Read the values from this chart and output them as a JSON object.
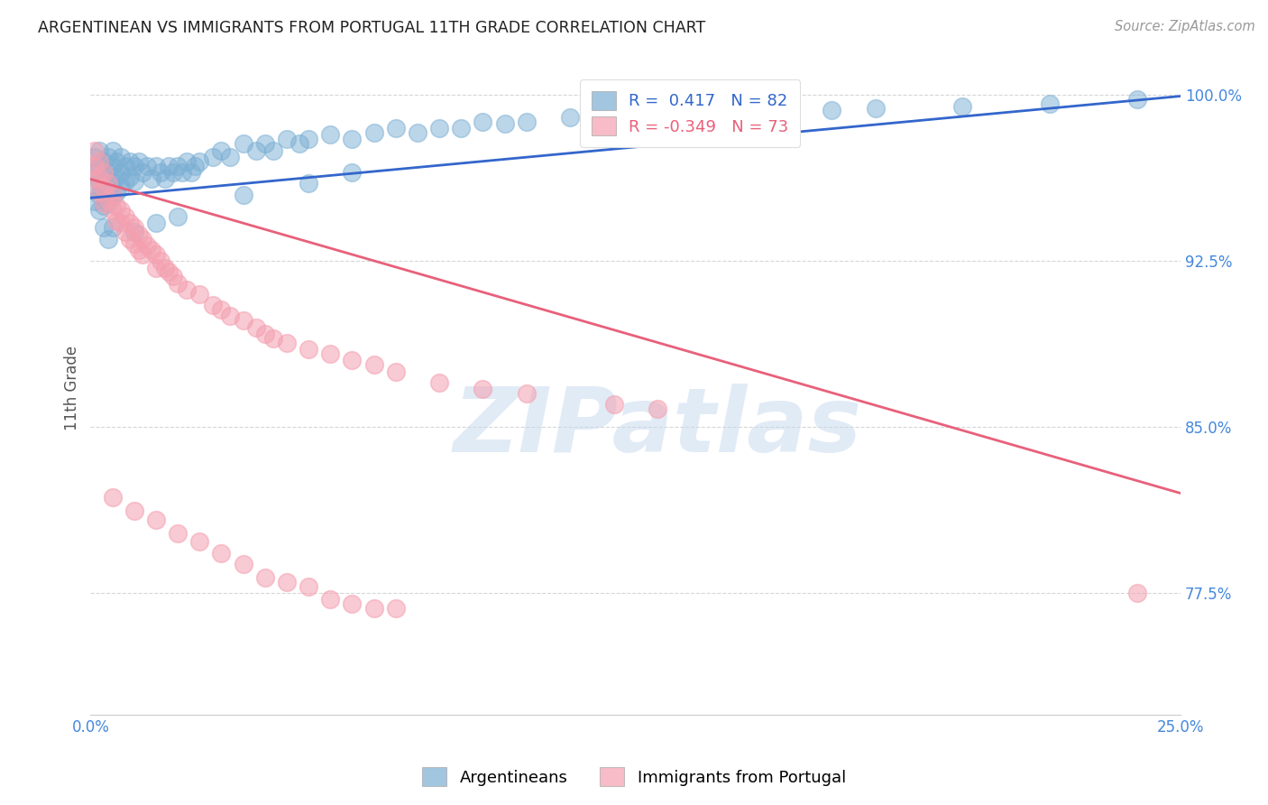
{
  "title": "ARGENTINEAN VS IMMIGRANTS FROM PORTUGAL 11TH GRADE CORRELATION CHART",
  "source": "Source: ZipAtlas.com",
  "ylabel": "11th Grade",
  "xlim": [
    0.0,
    0.25
  ],
  "ylim": [
    0.72,
    1.015
  ],
  "yticks": [
    0.775,
    0.85,
    0.925,
    1.0
  ],
  "ytick_labels": [
    "77.5%",
    "85.0%",
    "92.5%",
    "100.0%"
  ],
  "xtick_positions": [
    0.0,
    0.05,
    0.1,
    0.15,
    0.2,
    0.25
  ],
  "xtick_labels": [
    "0.0%",
    "",
    "",
    "",
    "",
    "25.0%"
  ],
  "legend_r_blue": " 0.417",
  "legend_n_blue": "82",
  "legend_r_pink": "-0.349",
  "legend_n_pink": "73",
  "blue_color": "#7BAFD4",
  "pink_color": "#F4A0B0",
  "line_blue_color": "#3366CC",
  "line_pink_color": "#E8607A",
  "label_color": "#4488DD",
  "background_color": "#FFFFFF",
  "watermark_text": "ZIPatlas",
  "watermark_color": "#C5D8EE",
  "blue_line": [
    [
      0.0,
      0.9535
    ],
    [
      0.25,
      0.9995
    ]
  ],
  "pink_line": [
    [
      0.0,
      0.962
    ],
    [
      0.25,
      0.82
    ]
  ],
  "blue_scatter": [
    [
      0.001,
      0.972
    ],
    [
      0.001,
      0.965
    ],
    [
      0.001,
      0.958
    ],
    [
      0.001,
      0.952
    ],
    [
      0.002,
      0.975
    ],
    [
      0.002,
      0.968
    ],
    [
      0.002,
      0.961
    ],
    [
      0.002,
      0.955
    ],
    [
      0.002,
      0.948
    ],
    [
      0.003,
      0.97
    ],
    [
      0.003,
      0.963
    ],
    [
      0.003,
      0.957
    ],
    [
      0.003,
      0.95
    ],
    [
      0.004,
      0.972
    ],
    [
      0.004,
      0.965
    ],
    [
      0.004,
      0.958
    ],
    [
      0.004,
      0.951
    ],
    [
      0.005,
      0.975
    ],
    [
      0.005,
      0.968
    ],
    [
      0.005,
      0.961
    ],
    [
      0.005,
      0.954
    ],
    [
      0.006,
      0.97
    ],
    [
      0.006,
      0.963
    ],
    [
      0.006,
      0.956
    ],
    [
      0.007,
      0.972
    ],
    [
      0.007,
      0.965
    ],
    [
      0.007,
      0.958
    ],
    [
      0.008,
      0.968
    ],
    [
      0.008,
      0.961
    ],
    [
      0.009,
      0.97
    ],
    [
      0.009,
      0.963
    ],
    [
      0.01,
      0.968
    ],
    [
      0.01,
      0.961
    ],
    [
      0.011,
      0.97
    ],
    [
      0.012,
      0.965
    ],
    [
      0.013,
      0.968
    ],
    [
      0.014,
      0.962
    ],
    [
      0.015,
      0.968
    ],
    [
      0.016,
      0.965
    ],
    [
      0.017,
      0.962
    ],
    [
      0.018,
      0.968
    ],
    [
      0.019,
      0.965
    ],
    [
      0.02,
      0.968
    ],
    [
      0.021,
      0.965
    ],
    [
      0.022,
      0.97
    ],
    [
      0.023,
      0.965
    ],
    [
      0.024,
      0.968
    ],
    [
      0.025,
      0.97
    ],
    [
      0.028,
      0.972
    ],
    [
      0.03,
      0.975
    ],
    [
      0.032,
      0.972
    ],
    [
      0.035,
      0.978
    ],
    [
      0.038,
      0.975
    ],
    [
      0.04,
      0.978
    ],
    [
      0.042,
      0.975
    ],
    [
      0.045,
      0.98
    ],
    [
      0.048,
      0.978
    ],
    [
      0.05,
      0.98
    ],
    [
      0.055,
      0.982
    ],
    [
      0.06,
      0.98
    ],
    [
      0.065,
      0.983
    ],
    [
      0.07,
      0.985
    ],
    [
      0.075,
      0.983
    ],
    [
      0.08,
      0.985
    ],
    [
      0.085,
      0.985
    ],
    [
      0.09,
      0.988
    ],
    [
      0.095,
      0.987
    ],
    [
      0.1,
      0.988
    ],
    [
      0.11,
      0.99
    ],
    [
      0.12,
      0.992
    ],
    [
      0.13,
      0.991
    ],
    [
      0.14,
      0.99
    ],
    [
      0.15,
      0.992
    ],
    [
      0.16,
      0.993
    ],
    [
      0.17,
      0.993
    ],
    [
      0.18,
      0.994
    ],
    [
      0.2,
      0.995
    ],
    [
      0.22,
      0.996
    ],
    [
      0.24,
      0.998
    ],
    [
      0.003,
      0.94
    ],
    [
      0.004,
      0.935
    ],
    [
      0.005,
      0.94
    ],
    [
      0.01,
      0.938
    ],
    [
      0.015,
      0.942
    ],
    [
      0.02,
      0.945
    ],
    [
      0.035,
      0.955
    ],
    [
      0.05,
      0.96
    ],
    [
      0.06,
      0.965
    ]
  ],
  "pink_scatter": [
    [
      0.001,
      0.975
    ],
    [
      0.001,
      0.968
    ],
    [
      0.001,
      0.962
    ],
    [
      0.002,
      0.97
    ],
    [
      0.002,
      0.963
    ],
    [
      0.002,
      0.956
    ],
    [
      0.003,
      0.965
    ],
    [
      0.003,
      0.958
    ],
    [
      0.003,
      0.951
    ],
    [
      0.004,
      0.96
    ],
    [
      0.004,
      0.953
    ],
    [
      0.005,
      0.955
    ],
    [
      0.005,
      0.948
    ],
    [
      0.006,
      0.95
    ],
    [
      0.006,
      0.943
    ],
    [
      0.007,
      0.948
    ],
    [
      0.007,
      0.942
    ],
    [
      0.008,
      0.945
    ],
    [
      0.008,
      0.938
    ],
    [
      0.009,
      0.942
    ],
    [
      0.009,
      0.935
    ],
    [
      0.01,
      0.94
    ],
    [
      0.01,
      0.933
    ],
    [
      0.011,
      0.937
    ],
    [
      0.011,
      0.93
    ],
    [
      0.012,
      0.935
    ],
    [
      0.012,
      0.928
    ],
    [
      0.013,
      0.932
    ],
    [
      0.014,
      0.93
    ],
    [
      0.015,
      0.928
    ],
    [
      0.015,
      0.922
    ],
    [
      0.016,
      0.925
    ],
    [
      0.017,
      0.922
    ],
    [
      0.018,
      0.92
    ],
    [
      0.019,
      0.918
    ],
    [
      0.02,
      0.915
    ],
    [
      0.022,
      0.912
    ],
    [
      0.025,
      0.91
    ],
    [
      0.028,
      0.905
    ],
    [
      0.03,
      0.903
    ],
    [
      0.032,
      0.9
    ],
    [
      0.035,
      0.898
    ],
    [
      0.038,
      0.895
    ],
    [
      0.04,
      0.892
    ],
    [
      0.042,
      0.89
    ],
    [
      0.045,
      0.888
    ],
    [
      0.05,
      0.885
    ],
    [
      0.055,
      0.883
    ],
    [
      0.06,
      0.88
    ],
    [
      0.065,
      0.878
    ],
    [
      0.07,
      0.875
    ],
    [
      0.08,
      0.87
    ],
    [
      0.09,
      0.867
    ],
    [
      0.1,
      0.865
    ],
    [
      0.12,
      0.86
    ],
    [
      0.13,
      0.858
    ],
    [
      0.005,
      0.818
    ],
    [
      0.01,
      0.812
    ],
    [
      0.015,
      0.808
    ],
    [
      0.02,
      0.802
    ],
    [
      0.025,
      0.798
    ],
    [
      0.03,
      0.793
    ],
    [
      0.035,
      0.788
    ],
    [
      0.04,
      0.782
    ],
    [
      0.045,
      0.78
    ],
    [
      0.05,
      0.778
    ],
    [
      0.055,
      0.772
    ],
    [
      0.06,
      0.77
    ],
    [
      0.065,
      0.768
    ],
    [
      0.07,
      0.768
    ],
    [
      0.24,
      0.775
    ]
  ]
}
